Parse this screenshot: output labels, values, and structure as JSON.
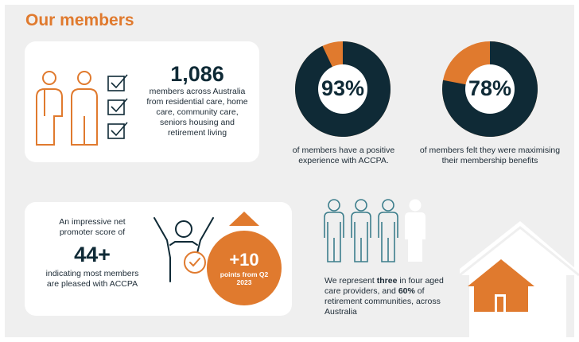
{
  "title": "Our members",
  "members": {
    "count": "1,086",
    "description": "members across Australia from residential care, home care, community care, seniors housing and retirement living"
  },
  "positive_experience": {
    "percent": "93%",
    "fraction": 0.93,
    "caption": "of members have a positive experience with ACCPA."
  },
  "maximising_benefits": {
    "percent": "78%",
    "fraction": 0.78,
    "caption": "of members felt they were maximising their membership benefits"
  },
  "nps": {
    "intro": "An impressive net promoter score of",
    "score": "44+",
    "outro": "indicating most members are pleased with ACCPA",
    "change": "+10",
    "change_caption": "points from Q2 2023"
  },
  "representation": {
    "pre": "We represent ",
    "three": "three",
    "mid": " in four aged care providers, and ",
    "sixty": "60%",
    "post": " of retirement communities, across Australia"
  },
  "colors": {
    "orange": "#e07a2e",
    "dark": "#0f2a36",
    "teal": "#3d7e8c"
  }
}
